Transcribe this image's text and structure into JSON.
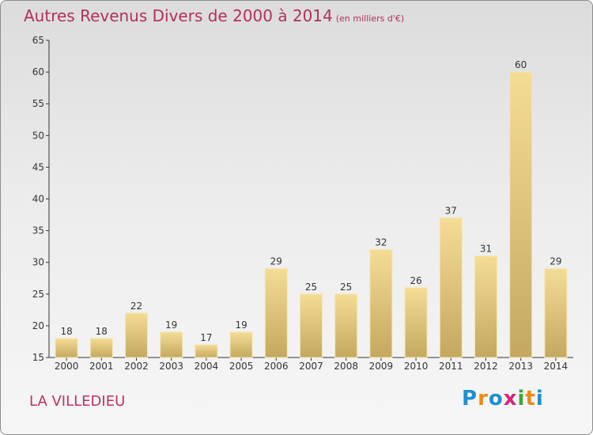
{
  "header": {
    "title": "Autres Revenus Divers de 2000 à 2014",
    "subtitle": "(en milliers d'€)"
  },
  "footer": {
    "location": "LA VILLEDIEU",
    "logo_text": "Proxiti",
    "logo_colors": [
      "#1e8fd0",
      "#e98b17",
      "#1e8fd0",
      "#d8237a",
      "#3aa53a",
      "#e98b17",
      "#1e8fd0"
    ]
  },
  "colors": {
    "title": "#b0305a",
    "bar_light": "#f5dc94",
    "bar_dark": "#c4a860",
    "axis": "#333333"
  },
  "chart_data": {
    "type": "bar",
    "categories": [
      "2000",
      "2001",
      "2002",
      "2003",
      "2004",
      "2005",
      "2006",
      "2007",
      "2008",
      "2009",
      "2010",
      "2011",
      "2012",
      "2013",
      "2014"
    ],
    "values": [
      18,
      18,
      22,
      19,
      17,
      19,
      29,
      25,
      25,
      32,
      26,
      37,
      31,
      60,
      29
    ],
    "title": "Autres Revenus Divers de 2000 à 2014",
    "subtitle": "(en milliers d'€)",
    "xlabel": "",
    "ylabel": "",
    "ylim": [
      15,
      65
    ],
    "yticks": [
      15,
      20,
      25,
      30,
      35,
      40,
      45,
      50,
      55,
      60,
      65
    ],
    "grid": false,
    "data_labels": true
  }
}
